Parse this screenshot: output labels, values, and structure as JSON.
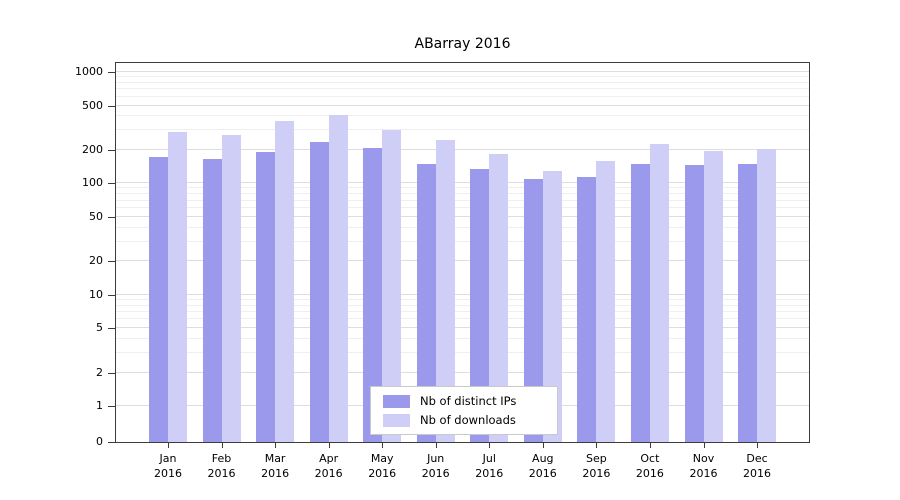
{
  "chart_data": {
    "type": "bar",
    "title": "ABarray 2016",
    "categories": [
      "Jan",
      "Feb",
      "Mar",
      "Apr",
      "May",
      "Jun",
      "Jul",
      "Aug",
      "Sep",
      "Oct",
      "Nov",
      "Dec"
    ],
    "year_label": "2016",
    "series": [
      {
        "name": "Nb of distinct IPs",
        "color": "#9a99ec",
        "values": [
          173,
          165,
          190,
          235,
          210,
          150,
          135,
          110,
          113,
          150,
          145,
          150
        ]
      },
      {
        "name": "Nb of downloads",
        "color": "#cfcef6",
        "values": [
          290,
          270,
          360,
          410,
          300,
          245,
          185,
          130,
          160,
          225,
          195,
          205
        ]
      }
    ],
    "yticks": [
      0,
      1,
      2,
      5,
      10,
      20,
      50,
      100,
      200,
      500,
      1000
    ],
    "y_scale": "symlog",
    "ylim": [
      0,
      1000
    ],
    "grid": true,
    "legend_position": "bottom-center"
  }
}
